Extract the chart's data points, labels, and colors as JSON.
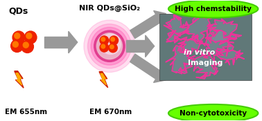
{
  "bg_color": "#ffffff",
  "qd_label": "QDs",
  "nir_label": "NIR QDs@SiO₂",
  "em1_label": "EM 655nm",
  "em2_label": "EM 670nm",
  "imaging_label": "in vitro Imaging",
  "chem_label": "High chemstability",
  "cyto_label": "Non-cytotoxicity",
  "qd_color": "#ee2200",
  "qd_highlight": "#ff7700",
  "arrow_color": "#888888",
  "arrow_color2": "#aaaaaa",
  "green_oval_color": "#66ff00",
  "green_oval_edge": "#44cc00",
  "lightning_outer": "#cc2200",
  "lightning_inner": "#ffaa00",
  "cell_bg": "#5a7070",
  "cell_line_color": "#ee3399"
}
